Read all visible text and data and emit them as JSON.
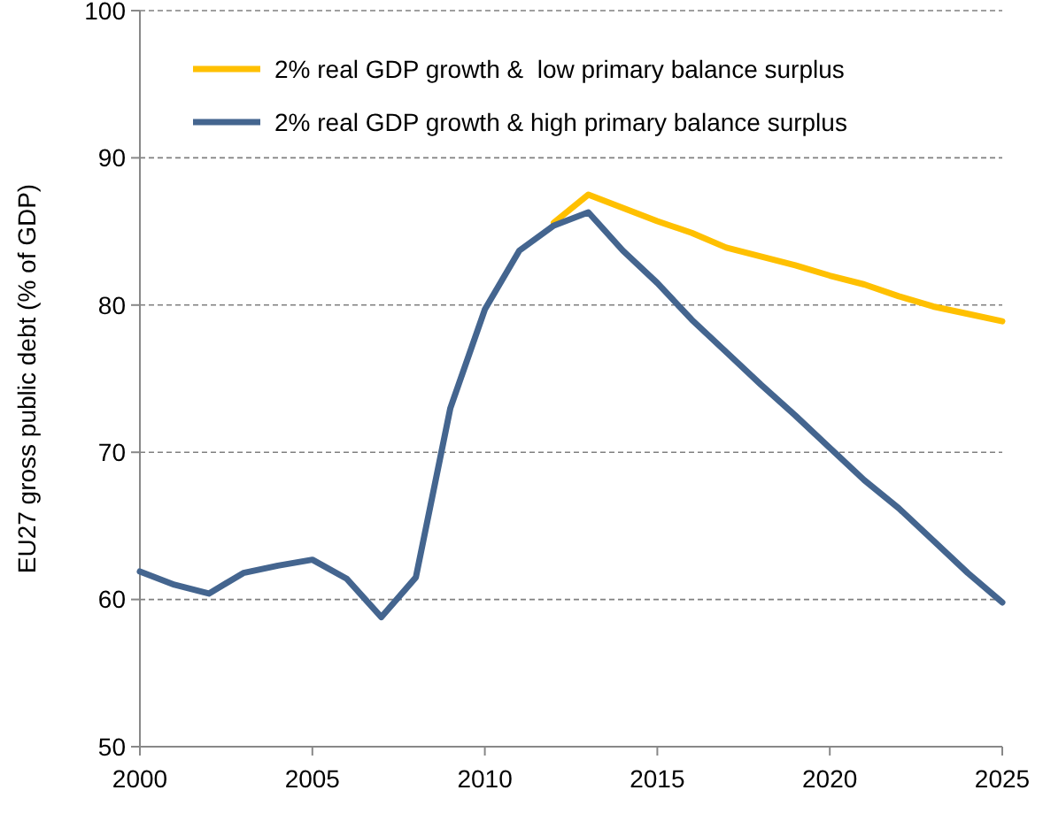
{
  "chart_data": {
    "type": "line",
    "ylabel": "EU27 gross public debt (% of GDP)",
    "x": [
      2000,
      2001,
      2002,
      2003,
      2004,
      2005,
      2006,
      2007,
      2008,
      2009,
      2010,
      2011,
      2012,
      2013,
      2014,
      2015,
      2016,
      2017,
      2018,
      2019,
      2020,
      2021,
      2022,
      2023,
      2024,
      2025
    ],
    "series": [
      {
        "name": "2% real GDP growth &  low primary balance surplus",
        "color": "#ffc000",
        "values": [
          null,
          null,
          null,
          null,
          null,
          null,
          null,
          null,
          null,
          null,
          null,
          null,
          85.6,
          87.5,
          86.6,
          85.7,
          84.9,
          83.9,
          83.3,
          82.7,
          82.0,
          81.4,
          80.6,
          79.9,
          79.4,
          78.9
        ]
      },
      {
        "name": "2% real GDP growth & high primary balance surplus",
        "color": "#44658f",
        "values": [
          61.9,
          61.0,
          60.4,
          61.8,
          62.3,
          62.7,
          61.4,
          58.8,
          61.5,
          73.0,
          79.7,
          83.7,
          85.4,
          86.3,
          83.7,
          81.5,
          79.0,
          76.8,
          74.6,
          72.5,
          70.3,
          68.1,
          66.2,
          64.0,
          61.8,
          59.8
        ]
      }
    ],
    "xlim": [
      2000,
      2025
    ],
    "xticks": [
      2000,
      2005,
      2010,
      2015,
      2020,
      2025
    ],
    "ylim": [
      50,
      100
    ],
    "yticks": [
      50,
      60,
      70,
      80,
      90,
      100
    ],
    "grid": "y",
    "legend": "top",
    "marker": "none",
    "line_style": "solid"
  }
}
